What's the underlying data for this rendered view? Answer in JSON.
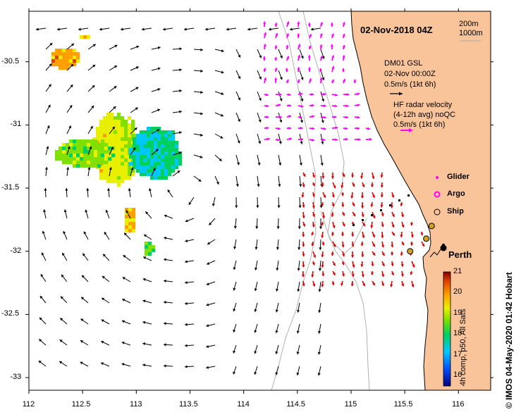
{
  "title": "02-Nov-2018 04Z",
  "depth_legend": [
    "200m",
    "1000m"
  ],
  "glider_info": {
    "name": "DM01 GSL",
    "time": "02-Nov 00:00Z",
    "scale": "0.5m/s (1kt 6h)"
  },
  "radar_info": {
    "line1": "HF radar velocity",
    "line2": "(4-12h avg) noQC",
    "scale": "0.5m/s (1kt 6h)"
  },
  "platform_legend": [
    "Glider",
    "Argo",
    "Ship"
  ],
  "place_name": "Perth",
  "credit": "© IMOS 04-May-2020 01:42 Hobart",
  "colorbar": {
    "title": "4h comp, p50, All Sats",
    "ticks": [
      "21",
      "20",
      "19",
      "18",
      "17",
      "16"
    ]
  },
  "axes": {
    "x_ticks": [
      "112",
      "112.5",
      "113",
      "113.5",
      "114",
      "114.5",
      "115",
      "115.5",
      "116"
    ],
    "y_ticks": [
      "-30.5",
      "-31",
      "-31.5",
      "-32",
      "-32.5",
      "-33"
    ]
  },
  "colors": {
    "land": "#f9c49a",
    "radar_vector": "#ff00ff",
    "glider_vector": "#dd0000",
    "model_vector": "#000000",
    "bathymetry": "#b0b0b0"
  },
  "chart_data": {
    "type": "map",
    "lon_range": [
      112,
      116.3
    ],
    "lat_range": [
      -33.1,
      -30.1
    ],
    "sst_colorbar_range": [
      15.5,
      21
    ],
    "sst_patches": [
      {
        "lon": 112.85,
        "lat": -31.2,
        "value": 19.5
      },
      {
        "lon": 112.75,
        "lat": -31.3,
        "value": 20
      },
      {
        "lon": 113.2,
        "lat": -31.25,
        "value": 18
      },
      {
        "lon": 112.3,
        "lat": -30.45,
        "value": 20.3
      },
      {
        "lon": 112.95,
        "lat": -31.75,
        "value": 20.2
      }
    ],
    "ship_track": [
      {
        "lon": 115.75,
        "lat": -31.8
      },
      {
        "lon": 115.7,
        "lat": -31.9
      },
      {
        "lon": 115.55,
        "lat": -32.0
      }
    ],
    "perth": {
      "lon": 115.86,
      "lat": -31.95
    }
  }
}
